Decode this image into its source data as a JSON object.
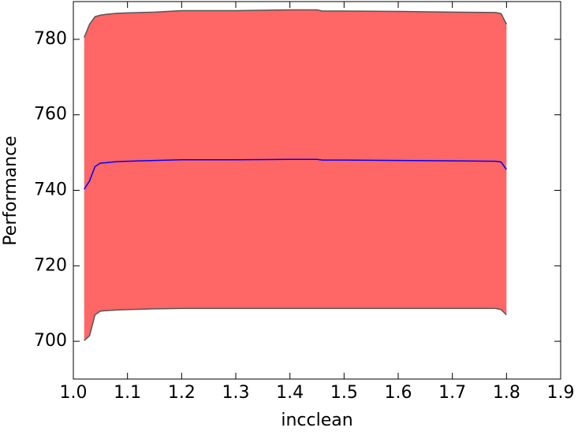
{
  "chart_data": {
    "type": "line",
    "xlabel": "incclean",
    "ylabel": "Performance",
    "x": [
      1.02,
      1.03,
      1.04,
      1.05,
      1.06,
      1.08,
      1.1,
      1.15,
      1.2,
      1.3,
      1.4,
      1.45,
      1.46,
      1.5,
      1.6,
      1.7,
      1.78,
      1.79,
      1.8
    ],
    "line": {
      "color": "#0000ff",
      "values": [
        740.3,
        742.5,
        746.3,
        747.2,
        747.3,
        747.6,
        747.7,
        747.9,
        748.1,
        748.1,
        748.2,
        748.2,
        748.0,
        748.0,
        747.9,
        747.8,
        747.7,
        747.5,
        745.5
      ]
    },
    "band": {
      "color": "#ff6666",
      "edge_color": "#555555",
      "upper": [
        780.5,
        784,
        786,
        786.4,
        786.6,
        786.9,
        787,
        787.2,
        787.6,
        787.6,
        787.8,
        787.8,
        787.5,
        787.5,
        787.4,
        787.2,
        787.1,
        786.8,
        784
      ],
      "lower": [
        700.2,
        701.5,
        707,
        708,
        708.1,
        708.3,
        708.4,
        708.6,
        708.7,
        708.7,
        708.7,
        708.7,
        708.7,
        708.7,
        708.7,
        708.7,
        708.7,
        708.4,
        707
      ]
    },
    "xlim": [
      1.0,
      1.9
    ],
    "xticks": [
      {
        "value": 1,
        "label": "1.0"
      },
      1.1,
      1.2,
      1.3,
      1.4,
      1.5,
      1.6,
      1.7,
      1.8,
      1.9
    ],
    "ylim": [
      690,
      790
    ],
    "yticks": [
      700,
      720,
      740,
      760,
      780
    ]
  }
}
